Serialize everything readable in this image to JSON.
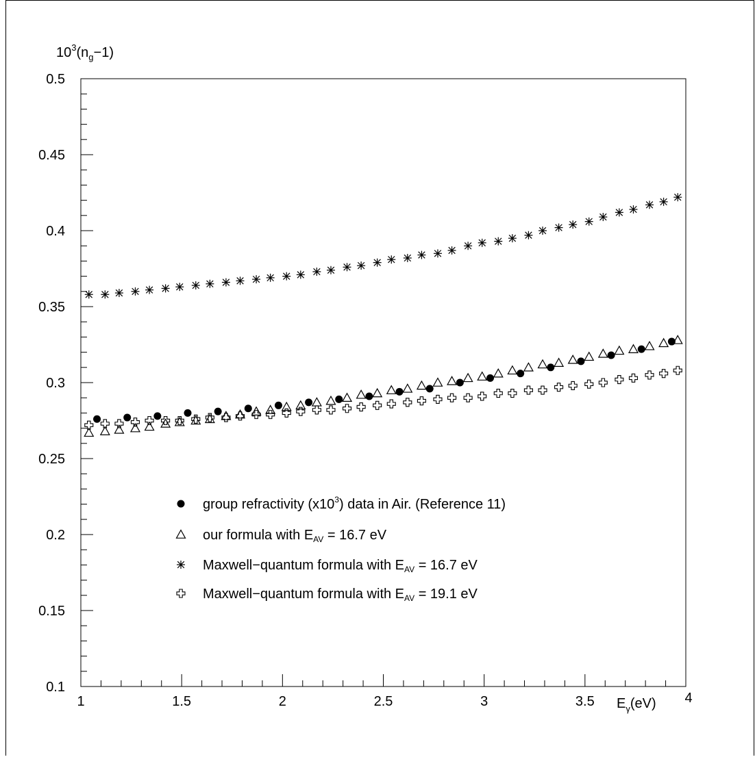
{
  "chart_data": {
    "type": "scatter",
    "title": "",
    "xlabel": "E",
    "xlabel_sub": "γ",
    "xlabel_unit": "(eV)",
    "ylabel": "10",
    "ylabel_sup": "3",
    "ylabel_rest": "(n",
    "ylabel_sub": "g",
    "ylabel_end": "−1)",
    "xlim": [
      1,
      4
    ],
    "ylim": [
      0.1,
      0.5
    ],
    "x_ticks": [
      1,
      1.5,
      2,
      2.5,
      3,
      3.5,
      4
    ],
    "x_tick_labels": [
      "1",
      "1.5",
      "2",
      "2.5",
      "3",
      "3.5",
      "4"
    ],
    "y_ticks": [
      0.1,
      0.15,
      0.2,
      0.25,
      0.3,
      0.35,
      0.4,
      0.45,
      0.5
    ],
    "y_tick_labels": [
      "0.1",
      "0.15",
      "0.2",
      "0.25",
      "0.3",
      "0.35",
      "0.4",
      "0.45",
      "0.5"
    ],
    "grid": false,
    "legend_position": "lower-center",
    "series": [
      {
        "name": "group refractivity (x10³) data in Air. (Reference 11)",
        "name_parts": [
          "group refractivity (x10",
          "3",
          ") data in Air. (Reference 11)"
        ],
        "marker": "filled-circle",
        "x": [
          1.08,
          1.23,
          1.38,
          1.53,
          1.68,
          1.83,
          1.98,
          2.13,
          2.28,
          2.43,
          2.58,
          2.73,
          2.88,
          3.03,
          3.18,
          3.33,
          3.48,
          3.63,
          3.78,
          3.93
        ],
        "y": [
          0.276,
          0.277,
          0.278,
          0.28,
          0.281,
          0.283,
          0.285,
          0.287,
          0.289,
          0.291,
          0.294,
          0.296,
          0.3,
          0.303,
          0.306,
          0.31,
          0.314,
          0.318,
          0.322,
          0.327
        ]
      },
      {
        "name": "our formula with E_AV = 16.7 eV",
        "name_parts": [
          "our formula with E",
          "AV",
          " = 16.7 eV"
        ],
        "marker": "open-triangle",
        "x": [
          1.04,
          1.12,
          1.19,
          1.27,
          1.34,
          1.42,
          1.49,
          1.57,
          1.64,
          1.72,
          1.79,
          1.87,
          1.94,
          2.02,
          2.09,
          2.17,
          2.24,
          2.32,
          2.39,
          2.47,
          2.54,
          2.62,
          2.69,
          2.77,
          2.84,
          2.92,
          2.99,
          3.07,
          3.14,
          3.22,
          3.29,
          3.37,
          3.44,
          3.52,
          3.59,
          3.67,
          3.74,
          3.82,
          3.89,
          3.96
        ],
        "y": [
          0.267,
          0.268,
          0.269,
          0.27,
          0.271,
          0.273,
          0.274,
          0.275,
          0.276,
          0.278,
          0.279,
          0.281,
          0.282,
          0.284,
          0.285,
          0.287,
          0.288,
          0.29,
          0.292,
          0.293,
          0.295,
          0.296,
          0.298,
          0.3,
          0.301,
          0.303,
          0.304,
          0.306,
          0.308,
          0.31,
          0.312,
          0.313,
          0.315,
          0.317,
          0.319,
          0.321,
          0.322,
          0.324,
          0.326,
          0.328
        ]
      },
      {
        "name": "Maxwell−quantum formula with E_AV = 16.7 eV",
        "name_parts": [
          "Maxwell−quantum formula with E",
          "AV",
          " = 16.7 eV"
        ],
        "marker": "asterisk",
        "x": [
          1.04,
          1.12,
          1.19,
          1.27,
          1.34,
          1.42,
          1.49,
          1.57,
          1.64,
          1.72,
          1.79,
          1.87,
          1.94,
          2.02,
          2.09,
          2.17,
          2.24,
          2.32,
          2.39,
          2.47,
          2.54,
          2.62,
          2.69,
          2.77,
          2.84,
          2.92,
          2.99,
          3.07,
          3.14,
          3.22,
          3.29,
          3.37,
          3.44,
          3.52,
          3.59,
          3.67,
          3.74,
          3.82,
          3.89,
          3.96
        ],
        "y": [
          0.358,
          0.358,
          0.359,
          0.36,
          0.361,
          0.362,
          0.363,
          0.364,
          0.365,
          0.366,
          0.367,
          0.368,
          0.369,
          0.37,
          0.371,
          0.373,
          0.374,
          0.376,
          0.377,
          0.379,
          0.381,
          0.382,
          0.384,
          0.385,
          0.387,
          0.39,
          0.392,
          0.393,
          0.395,
          0.397,
          0.4,
          0.402,
          0.404,
          0.406,
          0.409,
          0.412,
          0.414,
          0.417,
          0.419,
          0.422
        ]
      },
      {
        "name": "Maxwell−quantum formula with E_AV = 19.1 eV",
        "name_parts": [
          "Maxwell−quantum formula with E",
          "AV",
          " = 19.1 eV"
        ],
        "marker": "open-cross",
        "x": [
          1.04,
          1.12,
          1.19,
          1.27,
          1.34,
          1.42,
          1.49,
          1.57,
          1.64,
          1.72,
          1.79,
          1.87,
          1.94,
          2.02,
          2.09,
          2.17,
          2.24,
          2.32,
          2.39,
          2.47,
          2.54,
          2.62,
          2.69,
          2.77,
          2.84,
          2.92,
          2.99,
          3.07,
          3.14,
          3.22,
          3.29,
          3.37,
          3.44,
          3.52,
          3.59,
          3.67,
          3.74,
          3.82,
          3.89,
          3.96
        ],
        "y": [
          0.272,
          0.273,
          0.273,
          0.274,
          0.275,
          0.275,
          0.275,
          0.276,
          0.277,
          0.277,
          0.278,
          0.279,
          0.279,
          0.28,
          0.281,
          0.282,
          0.282,
          0.283,
          0.284,
          0.285,
          0.286,
          0.287,
          0.288,
          0.289,
          0.29,
          0.29,
          0.291,
          0.293,
          0.293,
          0.295,
          0.295,
          0.297,
          0.298,
          0.299,
          0.3,
          0.302,
          0.303,
          0.305,
          0.306,
          0.308
        ]
      }
    ]
  }
}
